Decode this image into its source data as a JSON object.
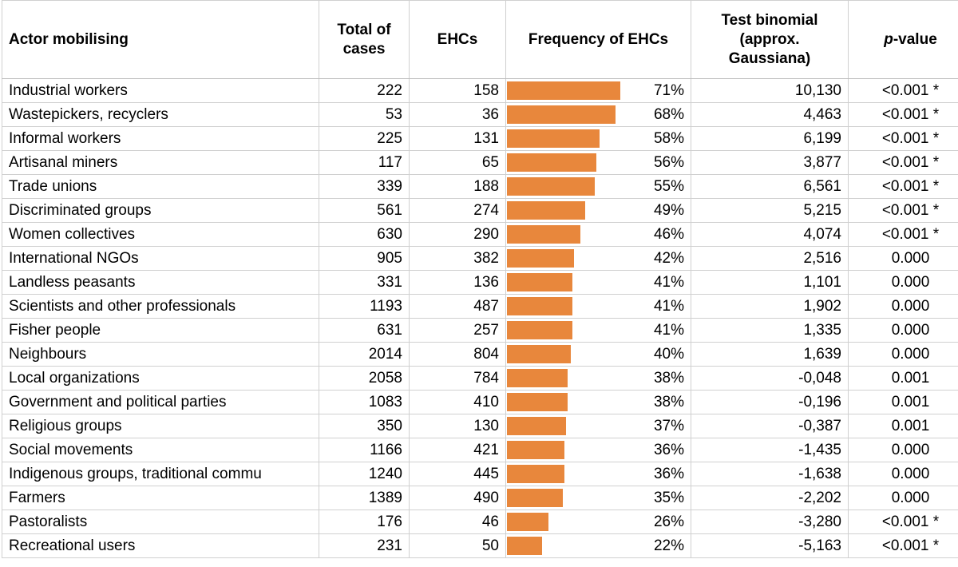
{
  "headers": {
    "actor": "Actor mobilising",
    "total": "Total of cases",
    "ehcs": "EHCs",
    "frequency": "Frequency of EHCs",
    "test": "Test binomial (approx. Gaussiana)",
    "p_italic": "p",
    "p_rest": "-value"
  },
  "bar_color": "#e8873c",
  "rows": [
    {
      "actor": "Industrial workers",
      "total": "222",
      "ehcs": "158",
      "freq": "71%",
      "freq_value": 0.71,
      "test": "10,130",
      "p": "<0.001 *"
    },
    {
      "actor": "Wastepickers, recyclers",
      "total": "53",
      "ehcs": "36",
      "freq": "68%",
      "freq_value": 0.68,
      "test": "4,463",
      "p": "<0.001 *"
    },
    {
      "actor": "Informal workers",
      "total": "225",
      "ehcs": "131",
      "freq": "58%",
      "freq_value": 0.58,
      "test": "6,199",
      "p": "<0.001 *"
    },
    {
      "actor": "Artisanal miners",
      "total": "117",
      "ehcs": "65",
      "freq": "56%",
      "freq_value": 0.56,
      "test": "3,877",
      "p": "<0.001 *"
    },
    {
      "actor": "Trade unions",
      "total": "339",
      "ehcs": "188",
      "freq": "55%",
      "freq_value": 0.55,
      "test": "6,561",
      "p": "<0.001 *"
    },
    {
      "actor": "Discriminated groups",
      "total": "561",
      "ehcs": "274",
      "freq": "49%",
      "freq_value": 0.49,
      "test": "5,215",
      "p": "<0.001 *"
    },
    {
      "actor": "Women collectives",
      "total": "630",
      "ehcs": "290",
      "freq": "46%",
      "freq_value": 0.46,
      "test": "4,074",
      "p": "<0.001 *"
    },
    {
      "actor": "International NGOs",
      "total": "905",
      "ehcs": "382",
      "freq": "42%",
      "freq_value": 0.42,
      "test": "2,516",
      "p": "0.000"
    },
    {
      "actor": "Landless peasants",
      "total": "331",
      "ehcs": "136",
      "freq": "41%",
      "freq_value": 0.41,
      "test": "1,101",
      "p": "0.000"
    },
    {
      "actor": "Scientists and other professionals",
      "total": "1193",
      "ehcs": "487",
      "freq": "41%",
      "freq_value": 0.41,
      "test": "1,902",
      "p": "0.000"
    },
    {
      "actor": "Fisher people",
      "total": "631",
      "ehcs": "257",
      "freq": "41%",
      "freq_value": 0.41,
      "test": "1,335",
      "p": "0.000"
    },
    {
      "actor": "Neighbours",
      "total": "2014",
      "ehcs": "804",
      "freq": "40%",
      "freq_value": 0.4,
      "test": "1,639",
      "p": "0.000"
    },
    {
      "actor": "Local organizations",
      "total": "2058",
      "ehcs": "784",
      "freq": "38%",
      "freq_value": 0.38,
      "test": "-0,048",
      "p": "0.001"
    },
    {
      "actor": "Government and political parties",
      "total": "1083",
      "ehcs": "410",
      "freq": "38%",
      "freq_value": 0.38,
      "test": "-0,196",
      "p": "0.001"
    },
    {
      "actor": "Religious groups",
      "total": "350",
      "ehcs": "130",
      "freq": "37%",
      "freq_value": 0.37,
      "test": "-0,387",
      "p": "0.001"
    },
    {
      "actor": "Social movements",
      "total": "1166",
      "ehcs": "421",
      "freq": "36%",
      "freq_value": 0.36,
      "test": "-1,435",
      "p": "0.000"
    },
    {
      "actor": "Indigenous groups, traditional commu",
      "total": "1240",
      "ehcs": "445",
      "freq": "36%",
      "freq_value": 0.36,
      "test": "-1,638",
      "p": "0.000"
    },
    {
      "actor": "Farmers",
      "total": "1389",
      "ehcs": "490",
      "freq": "35%",
      "freq_value": 0.35,
      "test": "-2,202",
      "p": "0.000"
    },
    {
      "actor": "Pastoralists",
      "total": "176",
      "ehcs": "46",
      "freq": "26%",
      "freq_value": 0.26,
      "test": "-3,280",
      "p": "<0.001 *"
    },
    {
      "actor": "Recreational users",
      "total": "231",
      "ehcs": "50",
      "freq": "22%",
      "freq_value": 0.22,
      "test": "-5,163",
      "p": "<0.001 *"
    }
  ]
}
